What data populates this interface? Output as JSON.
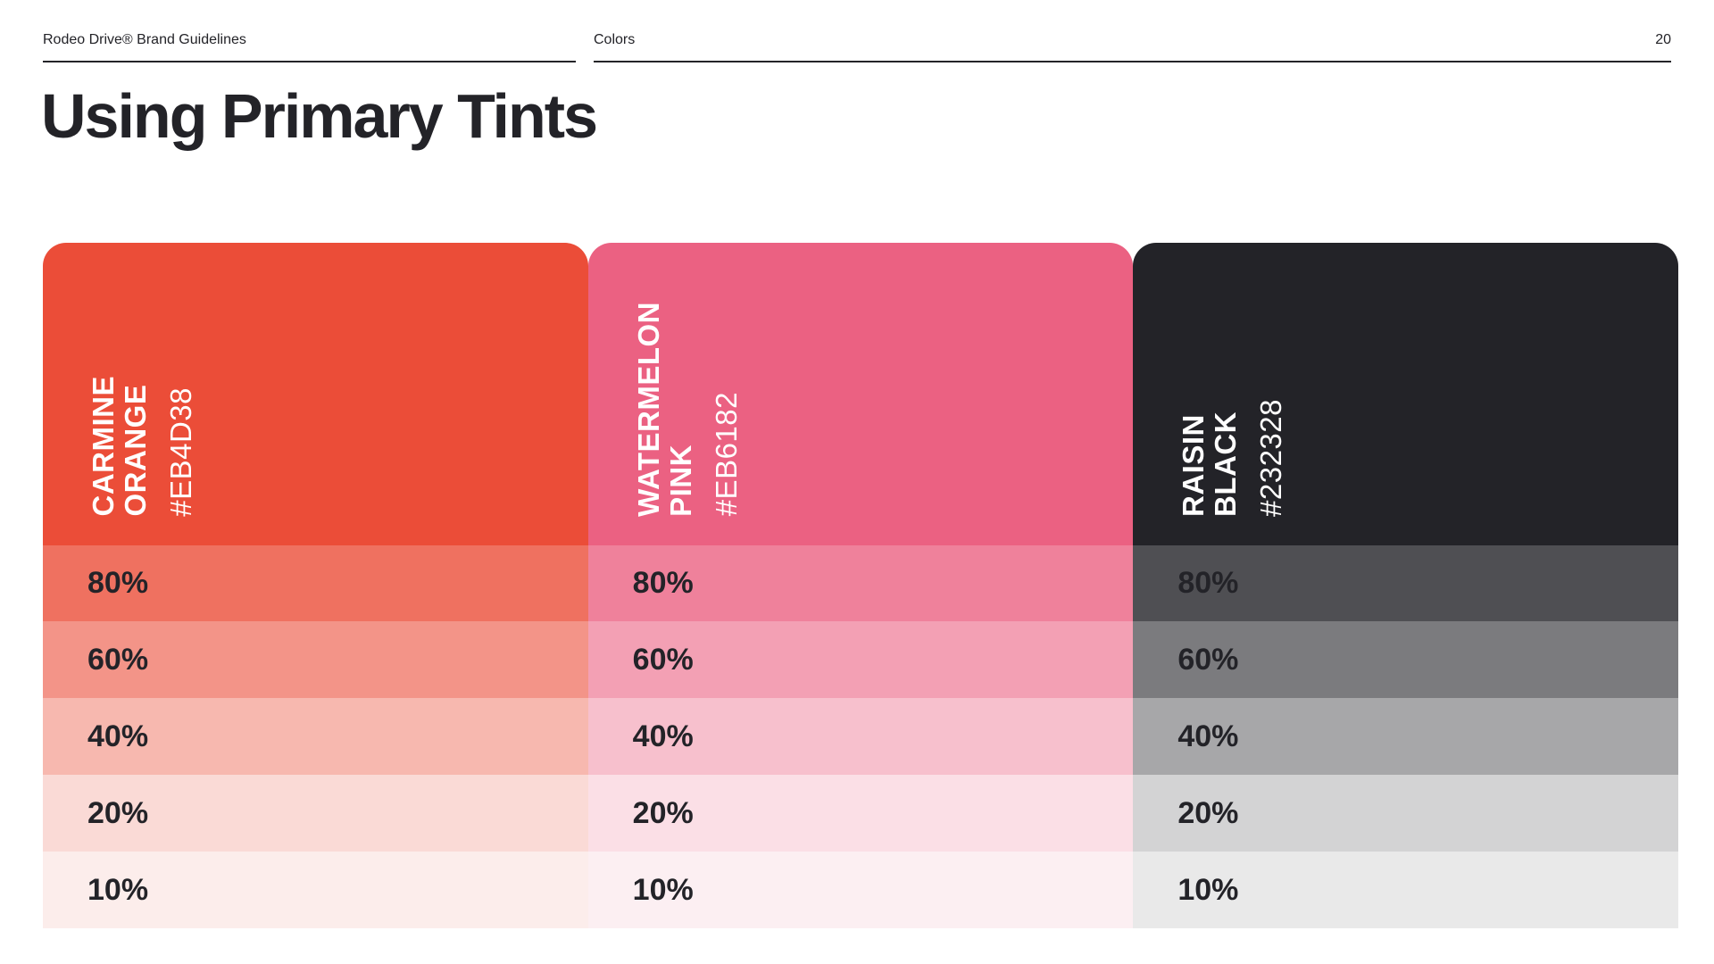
{
  "header": {
    "brand": "Rodeo Drive® Brand Guidelines",
    "section": "Colors",
    "page_number": "20"
  },
  "title": "Using Primary Tints",
  "swatches": [
    {
      "name": "CARMINE\nORANGE",
      "hex_label": "#EB4D38",
      "color": "#EB4D38",
      "tints": [
        {
          "label": "80%",
          "color": "#EF7160"
        },
        {
          "label": "60%",
          "color": "#F39488"
        },
        {
          "label": "40%",
          "color": "#F7B8AF"
        },
        {
          "label": "20%",
          "color": "#FADAD6"
        },
        {
          "label": "10%",
          "color": "#FCEDEB"
        }
      ]
    },
    {
      "name": "WATERMELON\nPINK",
      "hex_label": "#EB6182",
      "color": "#EB6182",
      "tints": [
        {
          "label": "80%",
          "color": "#EF819B"
        },
        {
          "label": "60%",
          "color": "#F3A0B4"
        },
        {
          "label": "40%",
          "color": "#F7C0CD"
        },
        {
          "label": "20%",
          "color": "#FBDFE6"
        },
        {
          "label": "10%",
          "color": "#FCEFF2"
        }
      ]
    },
    {
      "name": "RAISIN\nBLACK",
      "hex_label": "#232328",
      "color": "#232328",
      "tints": [
        {
          "label": "80%",
          "color": "#4F4F53"
        },
        {
          "label": "60%",
          "color": "#7B7B7E"
        },
        {
          "label": "40%",
          "color": "#A7A7A9"
        },
        {
          "label": "20%",
          "color": "#D3D3D4"
        },
        {
          "label": "10%",
          "color": "#E9E9E9"
        }
      ]
    }
  ]
}
